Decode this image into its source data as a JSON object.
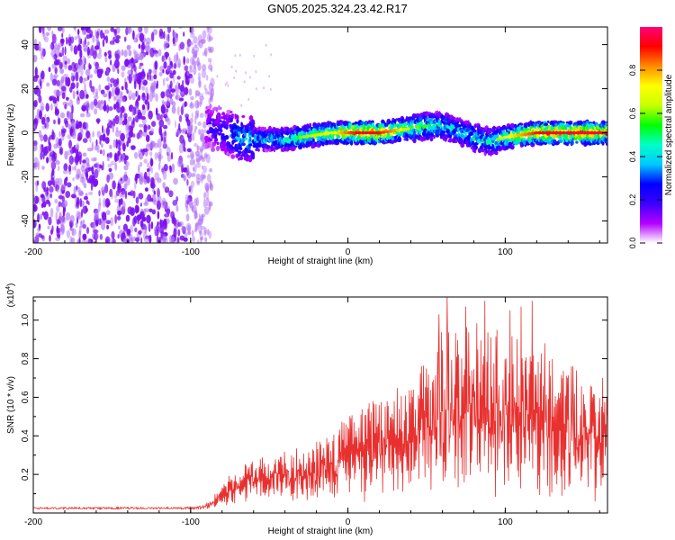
{
  "title": "GN05.2025.324.23.42.R17",
  "chart_data": [
    {
      "type": "heatmap",
      "title": "GN05.2025.324.23.42.R17",
      "xlabel": "Height of straight line (km)",
      "ylabel": "Frequency (Hz)",
      "xlim": [
        -200,
        165
      ],
      "ylim": [
        -50,
        48
      ],
      "xticks": [
        "-200",
        "-100",
        "0",
        "100"
      ],
      "yticks": [
        "40",
        "20",
        "0",
        "-20",
        "-40"
      ],
      "colorbar": {
        "label": "Normalized spectral amplitude",
        "range": [
          0,
          1
        ],
        "ticks": [
          "0.0",
          "0.2",
          "0.4",
          "0.6",
          "0.8"
        ],
        "colors": [
          "#ffffff",
          "#b400ff",
          "#3c00ff",
          "#0000ff",
          "#00c8ff",
          "#00ffc8",
          "#00ff00",
          "#c8ff00",
          "#ffff00",
          "#ff8c00",
          "#ff0000",
          "#ff0078"
        ]
      },
      "noise_region_x": [
        -200,
        -90
      ],
      "signal_ridge": {
        "x": [
          -90,
          -80,
          -70,
          -60,
          -50,
          -40,
          -30,
          -20,
          -10,
          0,
          10,
          20,
          30,
          40,
          50,
          60,
          70,
          80,
          90,
          100,
          110,
          120,
          130,
          140,
          150,
          165
        ],
        "freq": [
          3,
          1,
          -2,
          -3,
          -3,
          -3,
          -2,
          -1,
          0,
          0,
          0,
          0,
          1,
          2,
          3,
          3,
          1,
          -2,
          -4,
          -2,
          -1,
          0,
          0,
          0,
          0,
          0
        ],
        "peak_amplitude": [
          0.2,
          0.25,
          0.4,
          0.45,
          0.45,
          0.5,
          0.6,
          0.65,
          0.7,
          0.85,
          0.95,
          0.9,
          0.8,
          0.6,
          0.55,
          0.5,
          0.45,
          0.5,
          0.5,
          0.7,
          0.8,
          0.9,
          0.95,
          0.95,
          0.95,
          0.95
        ]
      }
    },
    {
      "type": "line",
      "xlabel": "Height of straight line (km)",
      "ylabel": "SNR (10 * v/v)",
      "yscale_label": "(x10",
      "yscale_exp": "4",
      "yscale_close": ")",
      "xlim": [
        -200,
        165
      ],
      "ylim": [
        0,
        1.12
      ],
      "xticks": [
        "-200",
        "-100",
        "0",
        "100"
      ],
      "yticks": [
        "1.0",
        "0.8",
        "0.6",
        "0.4",
        "0.2"
      ],
      "color": "#e8302f",
      "envelope": {
        "x": [
          -200,
          -110,
          -95,
          -88,
          -80,
          -70,
          -60,
          -50,
          -40,
          -30,
          -20,
          -10,
          0,
          10,
          20,
          30,
          40,
          50,
          60,
          70,
          80,
          90,
          100,
          110,
          120,
          130,
          140,
          150,
          160,
          165
        ],
        "low": [
          0.02,
          0.02,
          0.02,
          0.02,
          0.03,
          0.05,
          0.05,
          0.05,
          0.05,
          0.05,
          0.05,
          0.05,
          0.05,
          0.05,
          0.05,
          0.04,
          0.04,
          0.04,
          0.04,
          0.04,
          0.04,
          0.04,
          0.04,
          0.04,
          0.04,
          0.04,
          0.04,
          0.04,
          0.04,
          0.3
        ],
        "high": [
          0.03,
          0.03,
          0.035,
          0.06,
          0.16,
          0.24,
          0.28,
          0.3,
          0.32,
          0.34,
          0.38,
          0.44,
          0.5,
          0.56,
          0.6,
          0.64,
          0.7,
          0.82,
          0.95,
          0.95,
          1.0,
          0.95,
          0.95,
          0.92,
          0.85,
          0.82,
          0.78,
          0.72,
          0.68,
          0.7
        ]
      },
      "spikes": [
        {
          "x": 58,
          "y": 1.03
        },
        {
          "x": 63,
          "y": 1.12
        },
        {
          "x": 75,
          "y": 1.07
        },
        {
          "x": 87,
          "y": 1.1
        },
        {
          "x": 103,
          "y": 1.05
        },
        {
          "x": 110,
          "y": 1.07
        },
        {
          "x": 117,
          "y": 1.1
        },
        {
          "x": 125,
          "y": 0.88
        },
        {
          "x": 143,
          "y": 0.76
        },
        {
          "x": 162,
          "y": 0.7
        }
      ]
    }
  ]
}
